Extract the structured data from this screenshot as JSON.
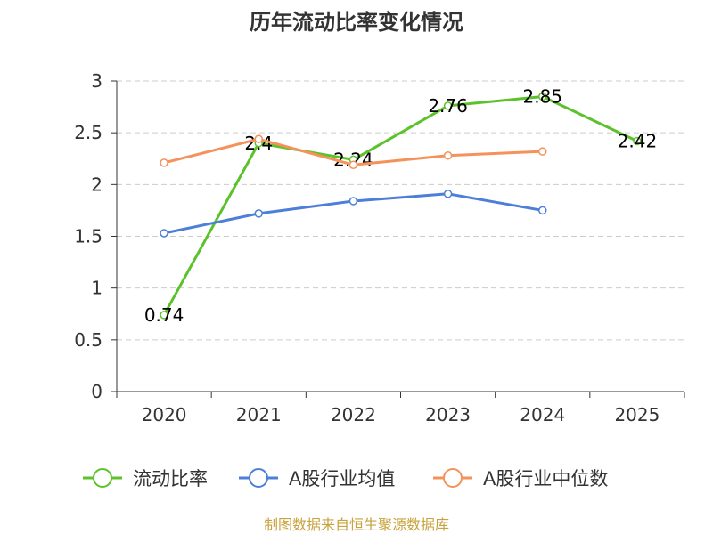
{
  "chart_data": {
    "type": "line",
    "title": "历年流动比率变化情况",
    "xlabel": "",
    "ylabel": "",
    "categories": [
      "2020",
      "2021",
      "2022",
      "2023",
      "2024",
      "2025"
    ],
    "ylim": [
      0,
      3
    ],
    "yticks": [
      0,
      0.5,
      1,
      1.5,
      2,
      2.5,
      3
    ],
    "ytick_labels": [
      "0",
      "0.5",
      "1",
      "1.5",
      "2",
      "2.5",
      "3"
    ],
    "grid": "horizontal-dashed",
    "legend_position": "bottom",
    "series": [
      {
        "name": "流动比率",
        "color": "#5cc22c",
        "values": [
          0.74,
          2.4,
          2.24,
          2.76,
          2.85,
          2.42
        ],
        "labels": [
          "0.74",
          "2.4",
          "2.24",
          "2.76",
          "2.85",
          "2.42"
        ],
        "show_labels": true
      },
      {
        "name": "A股行业均值",
        "color": "#4d7fd9",
        "values": [
          1.53,
          1.72,
          1.84,
          1.91,
          1.75,
          null
        ],
        "show_labels": false
      },
      {
        "name": "A股行业中位数",
        "color": "#f5915a",
        "values": [
          2.21,
          2.44,
          2.19,
          2.28,
          2.32,
          null
        ],
        "show_labels": false
      }
    ]
  },
  "footer": {
    "text": "制图数据来自恒生聚源数据库",
    "color": "#c8a23c"
  }
}
